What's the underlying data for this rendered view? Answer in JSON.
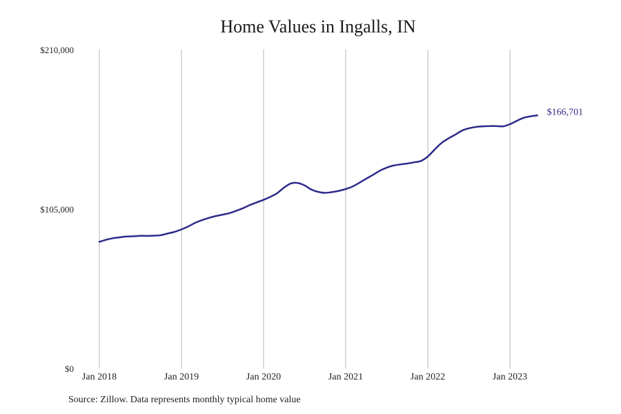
{
  "chart_data": {
    "type": "line",
    "title": "Home Values in Ingalls, IN",
    "xlabel": "",
    "ylabel": "",
    "ylim": [
      0,
      210000
    ],
    "y_ticks": [
      {
        "value": 0,
        "label": "$0"
      },
      {
        "value": 105000,
        "label": "$105,000"
      },
      {
        "value": 210000,
        "label": "$210,000"
      }
    ],
    "x_ticks": [
      {
        "value": 2018.0,
        "label": "Jan 2018"
      },
      {
        "value": 2019.0,
        "label": "Jan 2019"
      },
      {
        "value": 2020.0,
        "label": "Jan 2020"
      },
      {
        "value": 2021.0,
        "label": "Jan 2021"
      },
      {
        "value": 2022.0,
        "label": "Jan 2022"
      },
      {
        "value": 2023.0,
        "label": "Jan 2023"
      }
    ],
    "grid": "vertical",
    "line_color": "#2e2a8a",
    "end_label": "$166,701",
    "series": [
      {
        "x": [
          2018.0,
          2018.0833,
          2018.1667,
          2018.25,
          2018.3333,
          2018.4167,
          2018.5,
          2018.5833,
          2018.6667,
          2018.75,
          2018.8333,
          2018.9167,
          2019.0,
          2019.0833,
          2019.1667,
          2019.25,
          2019.3333,
          2019.4167,
          2019.5,
          2019.5833,
          2019.6667,
          2019.75,
          2019.8333,
          2019.9167,
          2020.0,
          2020.0833,
          2020.1667,
          2020.25,
          2020.3333,
          2020.4167,
          2020.5,
          2020.5833,
          2020.6667,
          2020.75,
          2020.8333,
          2020.9167,
          2021.0,
          2021.0833,
          2021.1667,
          2021.25,
          2021.3333,
          2021.4167,
          2021.5,
          2021.5833,
          2021.6667,
          2021.75,
          2021.8333,
          2021.9167,
          2022.0,
          2022.0833,
          2022.1667,
          2022.25,
          2022.3333,
          2022.4167,
          2022.5,
          2022.5833,
          2022.6667,
          2022.75,
          2022.8333,
          2022.9167,
          2023.0,
          2023.0833,
          2023.1667,
          2023.25,
          2023.3333
        ],
        "values": [
          83400,
          84800,
          85800,
          86400,
          86900,
          87100,
          87400,
          87300,
          87500,
          87800,
          88900,
          90000,
          91600,
          93600,
          95900,
          97700,
          99200,
          100400,
          101300,
          102300,
          103800,
          105600,
          107700,
          109400,
          111100,
          113100,
          115500,
          119200,
          121900,
          122200,
          120600,
          117800,
          116300,
          115700,
          116200,
          117000,
          118200,
          119800,
          122300,
          125000,
          127600,
          130300,
          132300,
          133700,
          134400,
          135000,
          135800,
          136700,
          139600,
          144200,
          148500,
          151500,
          154000,
          156700,
          158200,
          159100,
          159500,
          159700,
          159700,
          159500,
          160900,
          163100,
          165100,
          166100,
          166701
        ]
      }
    ]
  },
  "source_text": "Source: Zillow. Data represents monthly typical home value"
}
